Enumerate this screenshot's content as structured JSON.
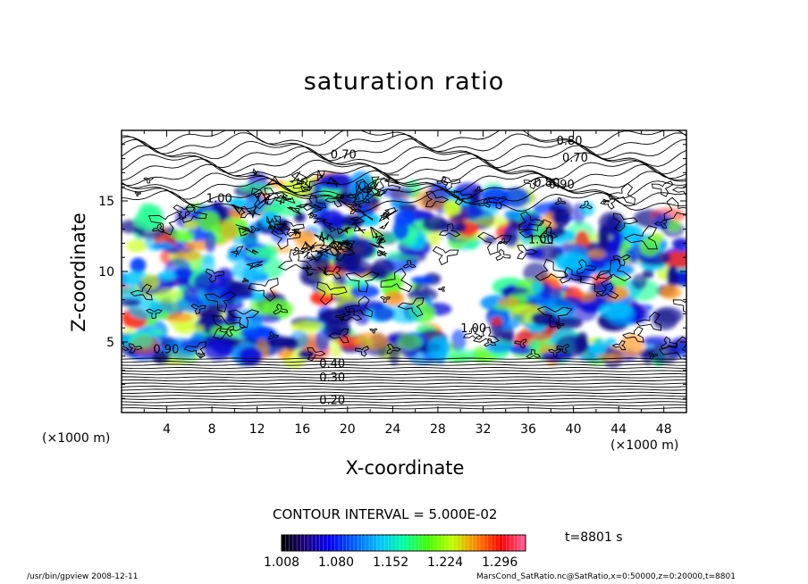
{
  "chart_data": {
    "type": "heatmap",
    "title": "saturation ratio",
    "xlabel": "X-coordinate",
    "ylabel": "Z-coordinate",
    "x_unit_label": "(×1000 m)",
    "y_unit_label": "(×1000 m)",
    "xlim": [
      0,
      50
    ],
    "ylim": [
      0,
      20
    ],
    "x_ticks": [
      "4",
      "8",
      "12",
      "16",
      "20",
      "24",
      "28",
      "32",
      "36",
      "40",
      "44",
      "48"
    ],
    "y_ticks": [
      "5",
      "10",
      "15"
    ],
    "contour_interval_label": "CONTOUR INTERVAL = 5.000E-02",
    "time_label": "t=8801 s",
    "colorbar": {
      "min": 1.008,
      "max": 1.33,
      "tick_labels": [
        "1.008",
        "1.080",
        "1.152",
        "1.224",
        "1.296"
      ],
      "colors": [
        "#000000",
        "#1a0080",
        "#0000ff",
        "#0060ff",
        "#00c0ff",
        "#00ffa0",
        "#40ff00",
        "#c0ff00",
        "#ff8000",
        "#ff0000",
        "#ff60a0"
      ]
    },
    "contour_labels": [
      {
        "text": "0.80",
        "x": 38.5,
        "z": 19.0
      },
      {
        "text": "0.80",
        "x": 36.5,
        "z": 16.0
      },
      {
        "text": "0.90",
        "x": 37.8,
        "z": 15.9
      },
      {
        "text": "0.70",
        "x": 18.5,
        "z": 18.0
      },
      {
        "text": "0.70",
        "x": 39.0,
        "z": 17.8
      },
      {
        "text": "1.00",
        "x": 7.5,
        "z": 14.9
      },
      {
        "text": "1.00",
        "x": 30.0,
        "z": 5.7
      },
      {
        "text": "1.00",
        "x": 36.0,
        "z": 12.0
      },
      {
        "text": "0.90",
        "x": 2.8,
        "z": 4.2
      },
      {
        "text": "0.40",
        "x": 17.5,
        "z": 3.2
      },
      {
        "text": "0.30",
        "x": 17.5,
        "z": 2.2
      },
      {
        "text": "0.20",
        "x": 17.5,
        "z": 0.6
      }
    ]
  },
  "footer": {
    "left": "/usr/bin/gpview   2008-12-11",
    "right": "MarsCond_SatRatio.nc@SatRatio,x=0:50000,z=0:20000,t=8801"
  }
}
